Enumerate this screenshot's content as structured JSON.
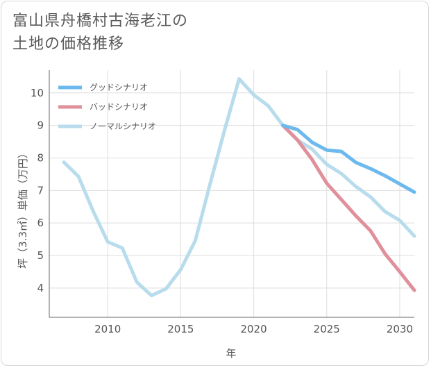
{
  "title": {
    "line1": "富山県舟橋村古海老江の",
    "line2": "土地の価格推移"
  },
  "chart_data": {
    "type": "line",
    "xlabel": "年",
    "ylabel": "坪（3.3㎡）単価（万円）",
    "xlim": [
      2006,
      2031
    ],
    "ylim": [
      3.1,
      10.7
    ],
    "xticks": [
      2010,
      2015,
      2020,
      2025,
      2030
    ],
    "yticks": [
      4,
      5,
      6,
      7,
      8,
      9,
      10
    ],
    "grid": true,
    "legend_position": "top-left",
    "series": [
      {
        "name": "グッドシナリオ",
        "color": "#6cb9ee",
        "x": [
          2022,
          2023,
          2024,
          2025,
          2026,
          2027,
          2028,
          2029,
          2030,
          2031
        ],
        "y": [
          9.0,
          8.87,
          8.48,
          8.24,
          8.2,
          7.86,
          7.67,
          7.45,
          7.2,
          6.95
        ]
      },
      {
        "name": "バッドシナリオ",
        "color": "#e0909a",
        "x": [
          2022,
          2023,
          2024,
          2025,
          2026,
          2027,
          2028,
          2029,
          2030,
          2031
        ],
        "y": [
          9.0,
          8.55,
          7.95,
          7.22,
          6.72,
          6.22,
          5.76,
          5.05,
          4.5,
          3.93
        ]
      },
      {
        "name": "ノーマルシナリオ",
        "color": "#b8dcec",
        "x": [
          2007,
          2008,
          2009,
          2010,
          2011,
          2012,
          2013,
          2014,
          2015,
          2016,
          2017,
          2018,
          2019,
          2020,
          2021,
          2022,
          2023,
          2024,
          2025,
          2026,
          2027,
          2028,
          2029,
          2030,
          2031
        ],
        "y": [
          7.87,
          7.43,
          6.37,
          5.42,
          5.23,
          4.18,
          3.77,
          3.98,
          4.57,
          5.46,
          7.18,
          8.85,
          10.43,
          9.94,
          9.6,
          9.0,
          8.55,
          8.27,
          7.8,
          7.52,
          7.12,
          6.8,
          6.35,
          6.08,
          5.6
        ]
      }
    ]
  }
}
